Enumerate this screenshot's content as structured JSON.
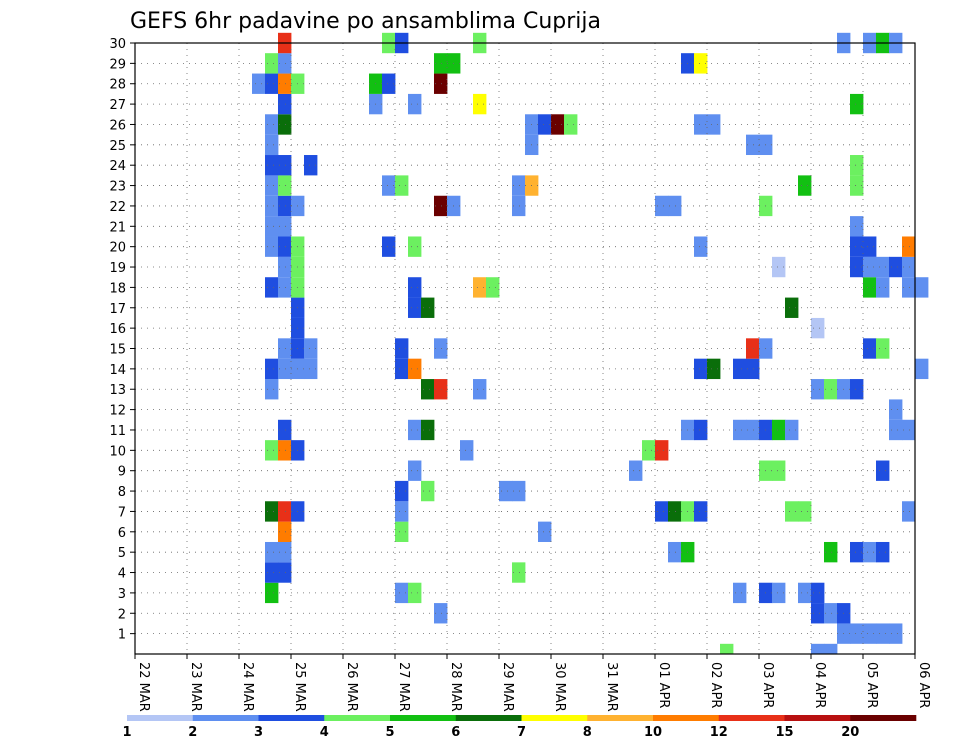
{
  "chart_data": {
    "type": "heatmap",
    "title": "GEFS 6hr padavine po ansamblima Cuprija",
    "xlabel": "",
    "ylabel": "",
    "x_ticks": [
      "22 MAR",
      "23 MAR",
      "24 MAR",
      "25 MAR",
      "26 MAR",
      "27 MAR",
      "28 MAR",
      "29 MAR",
      "30 MAR",
      "31 MAR",
      "01 APR",
      "02 APR",
      "03 APR",
      "04 APR",
      "05 APR",
      "06 APR"
    ],
    "x_range_days": [
      0,
      15
    ],
    "y_ticks": [
      1,
      2,
      3,
      4,
      5,
      6,
      7,
      8,
      9,
      10,
      11,
      12,
      13,
      14,
      15,
      16,
      17,
      18,
      19,
      20,
      21,
      22,
      23,
      24,
      25,
      26,
      27,
      28,
      29,
      30
    ],
    "y_range": [
      0,
      30
    ],
    "grid": true,
    "colorbar": {
      "levels": [
        1,
        2,
        3,
        4,
        5,
        6,
        7,
        8,
        10,
        12,
        15,
        20
      ],
      "colors": [
        "#b4c6f5",
        "#5f8ff0",
        "#1f4ee0",
        "#6cf060",
        "#12c012",
        "#0a6e0a",
        "#ffff00",
        "#ffb230",
        "#ff7c00",
        "#e83018",
        "#b81010",
        "#6a0000"
      ]
    },
    "cells": [
      [
        0,
        11.25,
        3
      ],
      [
        0,
        13.0,
        1
      ],
      [
        0,
        13.25,
        1
      ],
      [
        1,
        13.5,
        1
      ],
      [
        1,
        13.75,
        1
      ],
      [
        1,
        14.0,
        1
      ],
      [
        1,
        14.25,
        1
      ],
      [
        1,
        14.5,
        1
      ],
      [
        2,
        5.75,
        1
      ],
      [
        2,
        13.0,
        2
      ],
      [
        2,
        13.25,
        1
      ],
      [
        2,
        13.5,
        2
      ],
      [
        3,
        2.5,
        4
      ],
      [
        3,
        5.0,
        1
      ],
      [
        3,
        5.25,
        3
      ],
      [
        3,
        11.5,
        1
      ],
      [
        3,
        12.0,
        2
      ],
      [
        3,
        12.25,
        1
      ],
      [
        3,
        12.75,
        1
      ],
      [
        3,
        13.0,
        2
      ],
      [
        4,
        2.5,
        2
      ],
      [
        4,
        2.75,
        2
      ],
      [
        4,
        7.25,
        3
      ],
      [
        5,
        2.5,
        1
      ],
      [
        5,
        2.75,
        1
      ],
      [
        5,
        10.25,
        1
      ],
      [
        5,
        10.5,
        4
      ],
      [
        5,
        13.25,
        4
      ],
      [
        5,
        13.75,
        2
      ],
      [
        5,
        14.0,
        1
      ],
      [
        5,
        14.25,
        2
      ],
      [
        6,
        2.75,
        8
      ],
      [
        6,
        5.0,
        3
      ],
      [
        6,
        7.75,
        1
      ],
      [
        7,
        2.5,
        5
      ],
      [
        7,
        2.75,
        9
      ],
      [
        7,
        3.0,
        2
      ],
      [
        7,
        5.0,
        1
      ],
      [
        7,
        10.0,
        2
      ],
      [
        7,
        10.25,
        5
      ],
      [
        7,
        10.5,
        3
      ],
      [
        7,
        10.75,
        2
      ],
      [
        7,
        12.5,
        3
      ],
      [
        7,
        12.75,
        3
      ],
      [
        7,
        14.75,
        1
      ],
      [
        8,
        5.0,
        2
      ],
      [
        8,
        5.5,
        3
      ],
      [
        8,
        7.0,
        1
      ],
      [
        8,
        7.25,
        1
      ],
      [
        9,
        5.25,
        1
      ],
      [
        9,
        9.5,
        1
      ],
      [
        9,
        12.0,
        3
      ],
      [
        9,
        12.25,
        3
      ],
      [
        9,
        14.25,
        2
      ],
      [
        10,
        2.5,
        3
      ],
      [
        10,
        2.75,
        8
      ],
      [
        10,
        3.0,
        2
      ],
      [
        10,
        6.25,
        1
      ],
      [
        10,
        9.75,
        3
      ],
      [
        10,
        10.0,
        9
      ],
      [
        11,
        2.75,
        2
      ],
      [
        11,
        5.25,
        1
      ],
      [
        11,
        5.5,
        5
      ],
      [
        11,
        10.5,
        1
      ],
      [
        11,
        10.75,
        2
      ],
      [
        11,
        11.5,
        1
      ],
      [
        11,
        11.75,
        1
      ],
      [
        11,
        12.0,
        2
      ],
      [
        11,
        12.25,
        4
      ],
      [
        11,
        12.5,
        1
      ],
      [
        11,
        14.5,
        1
      ],
      [
        11,
        14.75,
        1
      ],
      [
        12,
        14.5,
        1
      ],
      [
        13,
        2.5,
        1
      ],
      [
        13,
        5.5,
        5
      ],
      [
        13,
        5.75,
        9
      ],
      [
        13,
        6.5,
        1
      ],
      [
        13,
        13.0,
        1
      ],
      [
        13,
        13.25,
        3
      ],
      [
        13,
        13.5,
        1
      ],
      [
        13,
        13.75,
        2
      ],
      [
        14,
        2.5,
        2
      ],
      [
        14,
        2.75,
        1
      ],
      [
        14,
        3.0,
        1
      ],
      [
        14,
        3.25,
        1
      ],
      [
        14,
        5.0,
        2
      ],
      [
        14,
        5.25,
        8
      ],
      [
        14,
        10.75,
        2
      ],
      [
        14,
        11.0,
        5
      ],
      [
        14,
        11.5,
        2
      ],
      [
        14,
        11.75,
        2
      ],
      [
        14,
        15.0,
        1
      ],
      [
        15,
        2.75,
        1
      ],
      [
        15,
        3.0,
        2
      ],
      [
        15,
        3.25,
        1
      ],
      [
        15,
        5.0,
        2
      ],
      [
        15,
        5.75,
        1
      ],
      [
        15,
        11.75,
        9
      ],
      [
        15,
        12.0,
        1
      ],
      [
        15,
        14.0,
        2
      ],
      [
        15,
        14.25,
        3
      ],
      [
        16,
        3.0,
        2
      ],
      [
        16,
        13.0,
        0
      ],
      [
        17,
        3.0,
        2
      ],
      [
        17,
        5.25,
        2
      ],
      [
        17,
        5.5,
        5
      ],
      [
        17,
        12.5,
        5
      ],
      [
        18,
        2.5,
        2
      ],
      [
        18,
        2.75,
        1
      ],
      [
        18,
        3.0,
        3
      ],
      [
        18,
        5.25,
        2
      ],
      [
        18,
        6.5,
        7
      ],
      [
        18,
        6.75,
        3
      ],
      [
        18,
        14.0,
        4
      ],
      [
        18,
        14.25,
        1
      ],
      [
        18,
        14.75,
        1
      ],
      [
        18,
        15.0,
        1
      ],
      [
        19,
        2.75,
        1
      ],
      [
        19,
        3.0,
        3
      ],
      [
        19,
        12.25,
        0
      ],
      [
        19,
        13.75,
        2
      ],
      [
        19,
        14.0,
        1
      ],
      [
        19,
        14.25,
        1
      ],
      [
        19,
        14.5,
        2
      ],
      [
        19,
        14.75,
        1
      ],
      [
        20,
        2.5,
        1
      ],
      [
        20,
        2.75,
        2
      ],
      [
        20,
        3.0,
        3
      ],
      [
        20,
        4.75,
        2
      ],
      [
        20,
        5.25,
        3
      ],
      [
        20,
        10.75,
        1
      ],
      [
        20,
        13.75,
        2
      ],
      [
        20,
        14.0,
        2
      ],
      [
        20,
        14.75,
        8
      ],
      [
        21,
        2.5,
        1
      ],
      [
        21,
        2.75,
        1
      ],
      [
        21,
        13.75,
        1
      ],
      [
        22,
        2.5,
        1
      ],
      [
        22,
        2.75,
        2
      ],
      [
        22,
        3.0,
        1
      ],
      [
        22,
        5.75,
        11
      ],
      [
        22,
        6.0,
        1
      ],
      [
        22,
        7.25,
        1
      ],
      [
        22,
        10.0,
        1
      ],
      [
        22,
        10.25,
        1
      ],
      [
        22,
        12.0,
        3
      ],
      [
        23,
        2.5,
        1
      ],
      [
        23,
        2.75,
        3
      ],
      [
        23,
        4.75,
        1
      ],
      [
        23,
        5.0,
        3
      ],
      [
        23,
        7.25,
        1
      ],
      [
        23,
        7.5,
        7
      ],
      [
        23,
        12.75,
        4
      ],
      [
        23,
        13.75,
        3
      ],
      [
        24,
        2.5,
        2
      ],
      [
        24,
        2.75,
        2
      ],
      [
        24,
        3.25,
        2
      ],
      [
        24,
        13.75,
        3
      ],
      [
        25,
        2.5,
        1
      ],
      [
        25,
        7.5,
        1
      ],
      [
        25,
        11.75,
        1
      ],
      [
        25,
        12.0,
        1
      ],
      [
        26,
        2.5,
        1
      ],
      [
        26,
        2.75,
        5
      ],
      [
        26,
        7.5,
        1
      ],
      [
        26,
        7.75,
        2
      ],
      [
        26,
        8.0,
        11
      ],
      [
        26,
        8.25,
        3
      ],
      [
        26,
        10.75,
        1
      ],
      [
        26,
        11.0,
        1
      ],
      [
        27,
        2.75,
        2
      ],
      [
        27,
        4.5,
        1
      ],
      [
        27,
        5.25,
        1
      ],
      [
        27,
        6.5,
        6
      ],
      [
        27,
        13.75,
        4
      ],
      [
        28,
        2.25,
        1
      ],
      [
        28,
        2.5,
        2
      ],
      [
        28,
        2.75,
        8
      ],
      [
        28,
        3.0,
        3
      ],
      [
        28,
        4.5,
        4
      ],
      [
        28,
        4.75,
        2
      ],
      [
        28,
        5.75,
        11
      ],
      [
        29,
        2.5,
        3
      ],
      [
        29,
        2.75,
        1
      ],
      [
        29,
        5.75,
        4
      ],
      [
        29,
        6.0,
        4
      ],
      [
        29,
        10.5,
        2
      ],
      [
        29,
        10.75,
        6
      ],
      [
        30,
        2.75,
        9
      ],
      [
        30,
        4.75,
        3
      ],
      [
        30,
        5.0,
        2
      ],
      [
        30,
        6.5,
        3
      ],
      [
        30,
        13.5,
        1
      ],
      [
        30,
        14.0,
        1
      ],
      [
        30,
        14.25,
        4
      ],
      [
        30,
        14.5,
        1
      ]
    ]
  }
}
